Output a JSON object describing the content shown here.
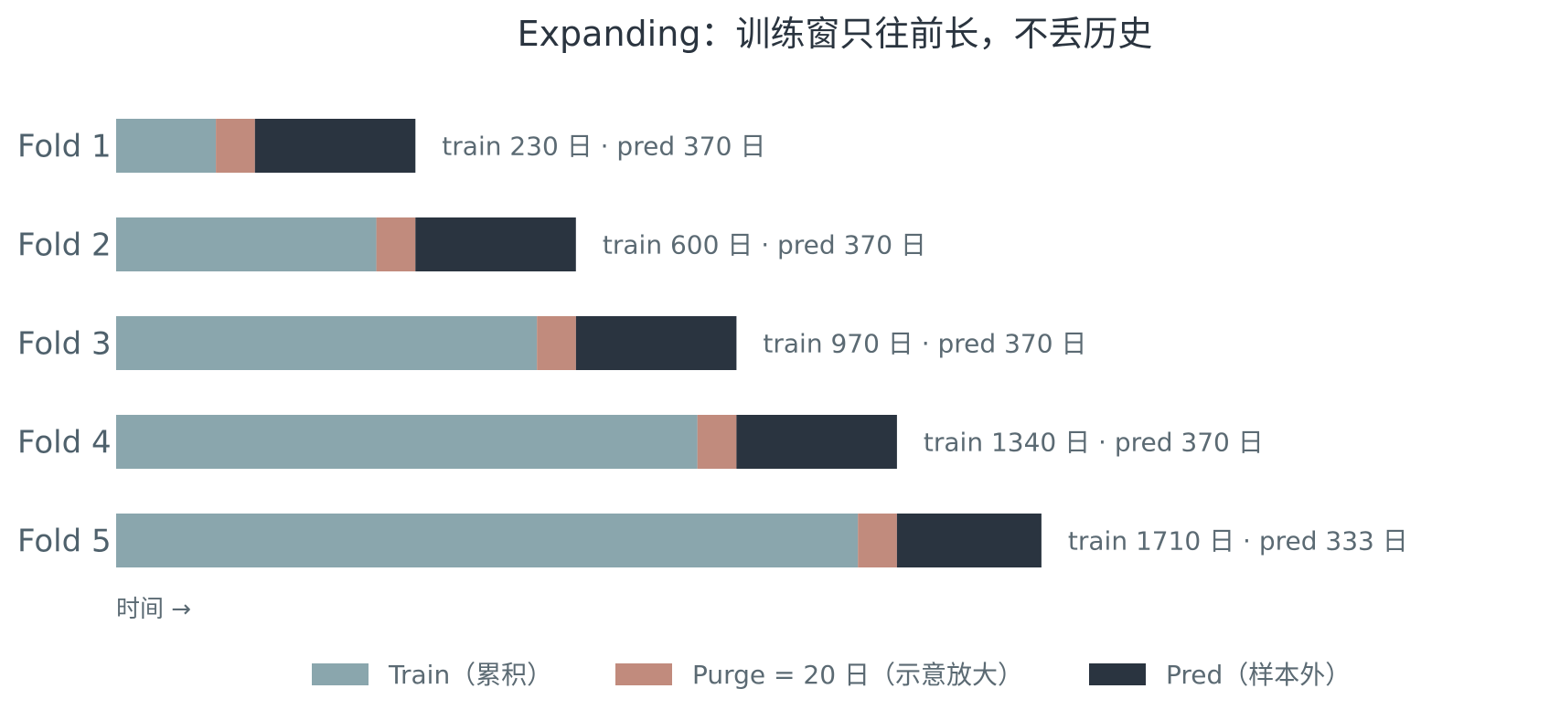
{
  "chart_data": {
    "type": "bar",
    "orientation": "horizontal",
    "stacked": true,
    "title": "Expanding：训练窗只往前长，不丢历史",
    "xlabel": "时间 →",
    "ylabel": "",
    "grid": false,
    "legend_position": "bottom",
    "categories": [
      "Fold 1",
      "Fold 2",
      "Fold 3",
      "Fold 4",
      "Fold 5"
    ],
    "series": [
      {
        "name": "Train（累积）",
        "color": "#8aa6ad",
        "values": [
          230,
          600,
          970,
          1340,
          1710
        ]
      },
      {
        "name": "Purge = 20 日（示意放大）",
        "color": "#c18b7d",
        "values": [
          90,
          90,
          90,
          90,
          90
        ]
      },
      {
        "name": "Pred（样本外）",
        "color": "#2a3440",
        "values": [
          370,
          370,
          370,
          370,
          333
        ]
      }
    ],
    "annotations": [
      "train 230 日 · pred 370 日",
      "train 600 日 · pred 370 日",
      "train 970 日 · pred 370 日",
      "train 1340 日 · pred 370 日",
      "train 1710 日 · pred 333 日"
    ]
  }
}
